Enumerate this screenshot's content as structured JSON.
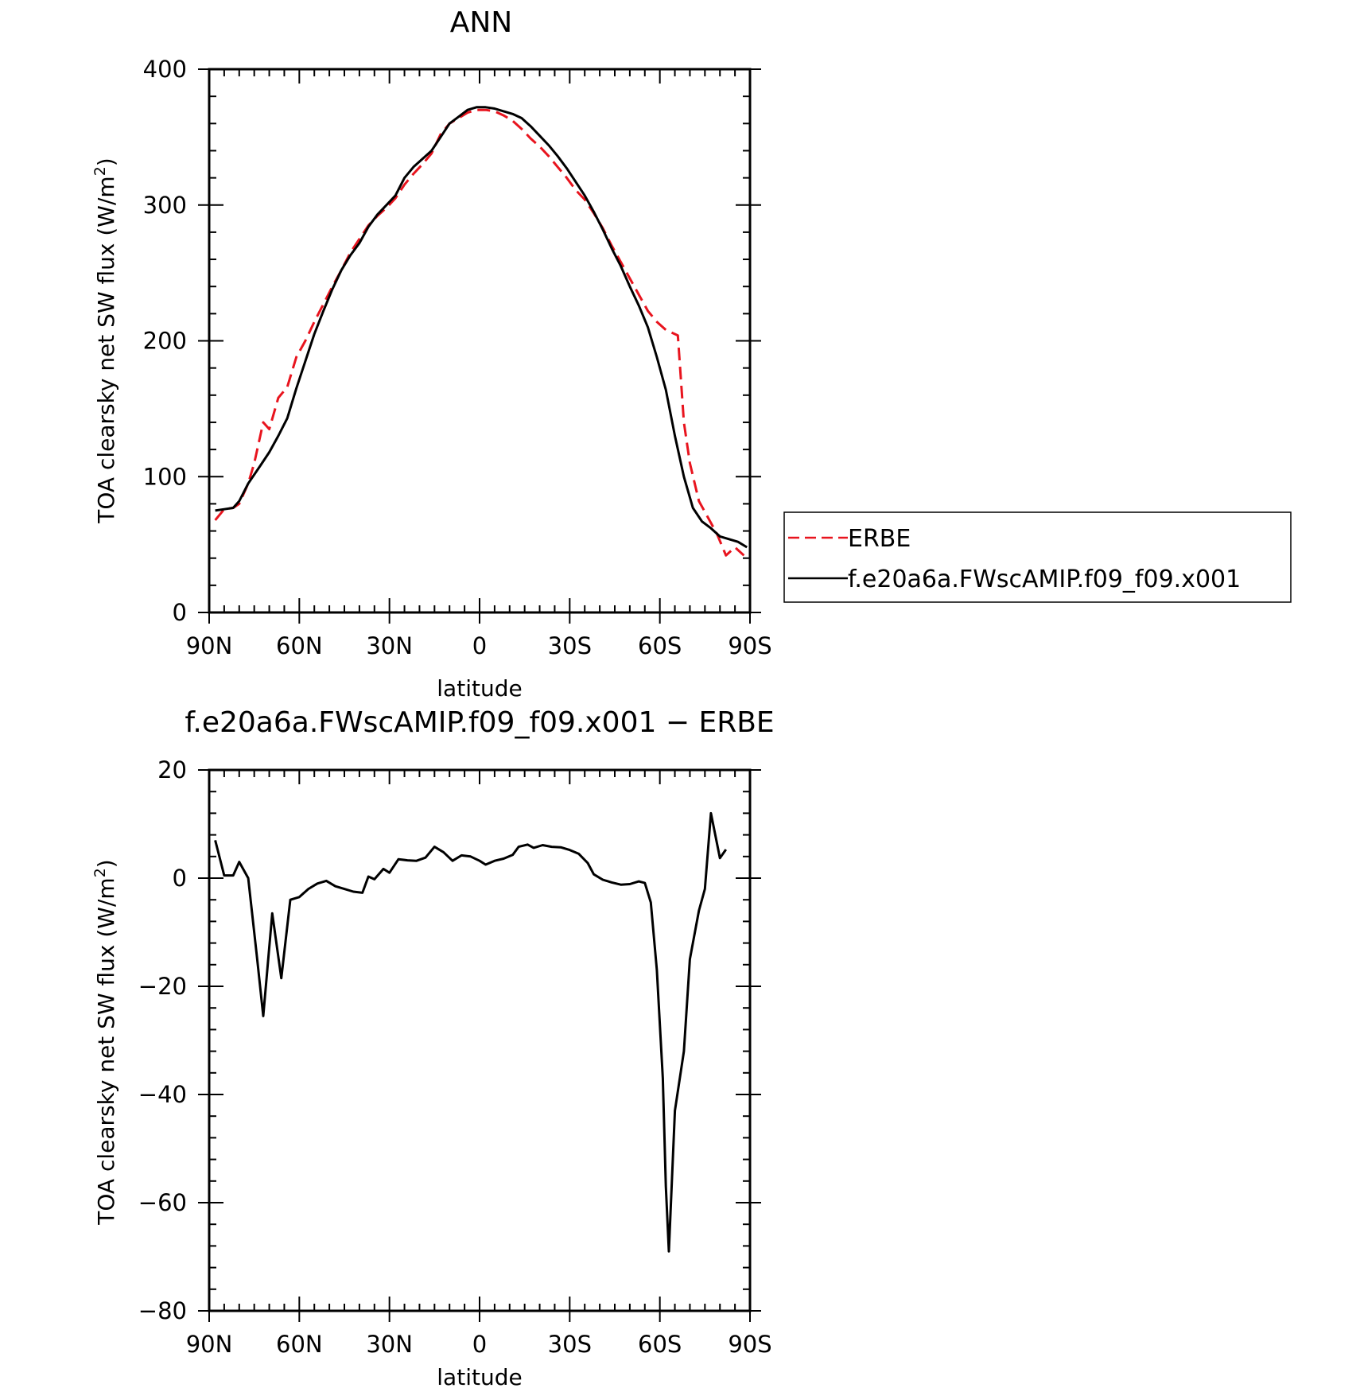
{
  "chart_data": [
    {
      "type": "line",
      "title": "ANN",
      "xlabel": "latitude",
      "ylabel": "TOA clearsky net SW flux (W/m²)",
      "ylabel_main": "TOA clearsky net SW flux (W/m",
      "ylabel_sup": "2",
      "ylabel_end": ")",
      "xlim": [
        -90,
        90
      ],
      "ylim": [
        0,
        400
      ],
      "x_ticks": [
        {
          "value": -90,
          "label": "90N"
        },
        {
          "value": -60,
          "label": "60N"
        },
        {
          "value": -30,
          "label": "30N"
        },
        {
          "value": 0,
          "label": "0"
        },
        {
          "value": 30,
          "label": "30S"
        },
        {
          "value": 60,
          "label": "60S"
        },
        {
          "value": 90,
          "label": "90S"
        }
      ],
      "y_ticks": [
        {
          "value": 0,
          "label": "0"
        },
        {
          "value": 100,
          "label": "100"
        },
        {
          "value": 200,
          "label": "200"
        },
        {
          "value": 300,
          "label": "300"
        },
        {
          "value": 400,
          "label": "400"
        }
      ],
      "legend_position": "right",
      "series": [
        {
          "name": "ERBE",
          "color": "#e8141e",
          "dash": "dashed",
          "points": [
            [
              -88,
              68
            ],
            [
              -85,
              76
            ],
            [
              -82,
              77
            ],
            [
              -80,
              80
            ],
            [
              -77,
              95
            ],
            [
              -75,
              110
            ],
            [
              -72,
              140
            ],
            [
              -70,
              135
            ],
            [
              -67,
              158
            ],
            [
              -64,
              166
            ],
            [
              -61,
              188
            ],
            [
              -58,
              200
            ],
            [
              -55,
              214
            ],
            [
              -52,
              227
            ],
            [
              -49,
              240
            ],
            [
              -46,
              252
            ],
            [
              -43,
              265
            ],
            [
              -40,
              275
            ],
            [
              -37,
              285
            ],
            [
              -34,
              292
            ],
            [
              -31,
              298
            ],
            [
              -28,
              305
            ],
            [
              -25,
              315
            ],
            [
              -22,
              323
            ],
            [
              -19,
              330
            ],
            [
              -16,
              338
            ],
            [
              -13,
              352
            ],
            [
              -10,
              360
            ],
            [
              -7,
              364
            ],
            [
              -4,
              368
            ],
            [
              -1,
              370
            ],
            [
              2,
              370
            ],
            [
              5,
              369
            ],
            [
              8,
              366
            ],
            [
              11,
              362
            ],
            [
              14,
              356
            ],
            [
              17,
              349
            ],
            [
              20,
              343
            ],
            [
              23,
              336
            ],
            [
              26,
              328
            ],
            [
              29,
              320
            ],
            [
              32,
              311
            ],
            [
              35,
              304
            ],
            [
              38,
              294
            ],
            [
              41,
              283
            ],
            [
              44,
              270
            ],
            [
              47,
              258
            ],
            [
              50,
              246
            ],
            [
              53,
              234
            ],
            [
              56,
              222
            ],
            [
              59,
              214
            ],
            [
              62,
              208
            ],
            [
              65,
              205
            ],
            [
              66,
              204
            ],
            [
              68,
              140
            ],
            [
              70,
              110
            ],
            [
              73,
              82
            ],
            [
              76,
              70
            ],
            [
              79,
              58
            ],
            [
              82,
              42
            ],
            [
              85,
              48
            ],
            [
              88,
              42
            ]
          ]
        },
        {
          "name": "f.e20a6a.FWscAMIP.f09_f09.x001",
          "color": "#000000",
          "dash": "solid",
          "points": [
            [
              -88,
              75
            ],
            [
              -85,
              76
            ],
            [
              -82,
              77
            ],
            [
              -80,
              82
            ],
            [
              -77,
              95
            ],
            [
              -73,
              108
            ],
            [
              -70,
              118
            ],
            [
              -67,
              130
            ],
            [
              -64,
              143
            ],
            [
              -61,
              165
            ],
            [
              -58,
              185
            ],
            [
              -55,
              205
            ],
            [
              -52,
              222
            ],
            [
              -49,
              238
            ],
            [
              -46,
              252
            ],
            [
              -43,
              263
            ],
            [
              -40,
              272
            ],
            [
              -37,
              284
            ],
            [
              -34,
              293
            ],
            [
              -31,
              300
            ],
            [
              -28,
              307
            ],
            [
              -25,
              320
            ],
            [
              -22,
              328
            ],
            [
              -19,
              334
            ],
            [
              -16,
              340
            ],
            [
              -13,
              350
            ],
            [
              -10,
              360
            ],
            [
              -7,
              365
            ],
            [
              -4,
              370
            ],
            [
              -1,
              372
            ],
            [
              2,
              372
            ],
            [
              5,
              371
            ],
            [
              8,
              369
            ],
            [
              11,
              367
            ],
            [
              14,
              364
            ],
            [
              17,
              358
            ],
            [
              20,
              351
            ],
            [
              23,
              344
            ],
            [
              26,
              336
            ],
            [
              29,
              327
            ],
            [
              32,
              317
            ],
            [
              35,
              307
            ],
            [
              38,
              295
            ],
            [
              41,
              282
            ],
            [
              44,
              268
            ],
            [
              47,
              255
            ],
            [
              50,
              240
            ],
            [
              53,
              226
            ],
            [
              56,
              210
            ],
            [
              59,
              188
            ],
            [
              62,
              164
            ],
            [
              65,
              130
            ],
            [
              68,
              100
            ],
            [
              71,
              77
            ],
            [
              74,
              67
            ],
            [
              77,
              62
            ],
            [
              80,
              56
            ],
            [
              83,
              54
            ],
            [
              86,
              52
            ],
            [
              89,
              48
            ]
          ]
        }
      ]
    },
    {
      "type": "line",
      "title": "f.e20a6a.FWscAMIP.f09_f09.x001 − ERBE",
      "xlabel": "latitude",
      "ylabel": "TOA clearsky net SW flux (W/m²)",
      "ylabel_main": "TOA clearsky net SW flux (W/m",
      "ylabel_sup": "2",
      "ylabel_end": ")",
      "xlim": [
        -90,
        90
      ],
      "ylim": [
        -80,
        20
      ],
      "x_ticks": [
        {
          "value": -90,
          "label": "90N"
        },
        {
          "value": -60,
          "label": "60N"
        },
        {
          "value": -30,
          "label": "30N"
        },
        {
          "value": 0,
          "label": "0"
        },
        {
          "value": 30,
          "label": "30S"
        },
        {
          "value": 60,
          "label": "60S"
        },
        {
          "value": 90,
          "label": "90S"
        }
      ],
      "y_ticks": [
        {
          "value": -80,
          "label": "−80"
        },
        {
          "value": -60,
          "label": "−60"
        },
        {
          "value": -40,
          "label": "−40"
        },
        {
          "value": -20,
          "label": "−20"
        },
        {
          "value": 0,
          "label": "0"
        },
        {
          "value": 20,
          "label": "20"
        }
      ],
      "series": [
        {
          "color": "#000000",
          "dash": "solid",
          "points": [
            [
              -88,
              7
            ],
            [
              -85,
              0.5
            ],
            [
              -82,
              0.5
            ],
            [
              -80,
              3
            ],
            [
              -77,
              0
            ],
            [
              -74,
              -15
            ],
            [
              -72,
              -25.5
            ],
            [
              -69,
              -6.5
            ],
            [
              -66,
              -18.5
            ],
            [
              -63,
              -4
            ],
            [
              -60,
              -3.5
            ],
            [
              -57,
              -2
            ],
            [
              -54,
              -1
            ],
            [
              -51,
              -0.5
            ],
            [
              -48,
              -1.5
            ],
            [
              -45,
              -2
            ],
            [
              -42,
              -2.5
            ],
            [
              -39,
              -2.7
            ],
            [
              -37,
              0.3
            ],
            [
              -35,
              -0.2
            ],
            [
              -32,
              1.7
            ],
            [
              -30,
              1
            ],
            [
              -27,
              3.5
            ],
            [
              -24,
              3.3
            ],
            [
              -21,
              3.2
            ],
            [
              -18,
              3.8
            ],
            [
              -15,
              5.8
            ],
            [
              -12,
              4.8
            ],
            [
              -9,
              3.2
            ],
            [
              -6,
              4.2
            ],
            [
              -3,
              4
            ],
            [
              0,
              3.2
            ],
            [
              2,
              2.5
            ],
            [
              5,
              3.2
            ],
            [
              8,
              3.6
            ],
            [
              11,
              4.3
            ],
            [
              13,
              5.8
            ],
            [
              16,
              6.2
            ],
            [
              18,
              5.6
            ],
            [
              21,
              6.1
            ],
            [
              24,
              5.8
            ],
            [
              27,
              5.7
            ],
            [
              30,
              5.2
            ],
            [
              33,
              4.5
            ],
            [
              36,
              2.8
            ],
            [
              38,
              0.7
            ],
            [
              41,
              -0.3
            ],
            [
              44,
              -0.8
            ],
            [
              47,
              -1.2
            ],
            [
              50,
              -1.1
            ],
            [
              53,
              -0.6
            ],
            [
              55,
              -0.9
            ],
            [
              57,
              -4.5
            ],
            [
              59,
              -17
            ],
            [
              61,
              -37
            ],
            [
              62,
              -57
            ],
            [
              63,
              -69
            ],
            [
              65,
              -43
            ],
            [
              68,
              -32
            ],
            [
              70,
              -15
            ],
            [
              73,
              -6
            ],
            [
              75,
              -2
            ],
            [
              77,
              12
            ],
            [
              80,
              3.7
            ],
            [
              82,
              5.3
            ]
          ]
        }
      ]
    }
  ]
}
